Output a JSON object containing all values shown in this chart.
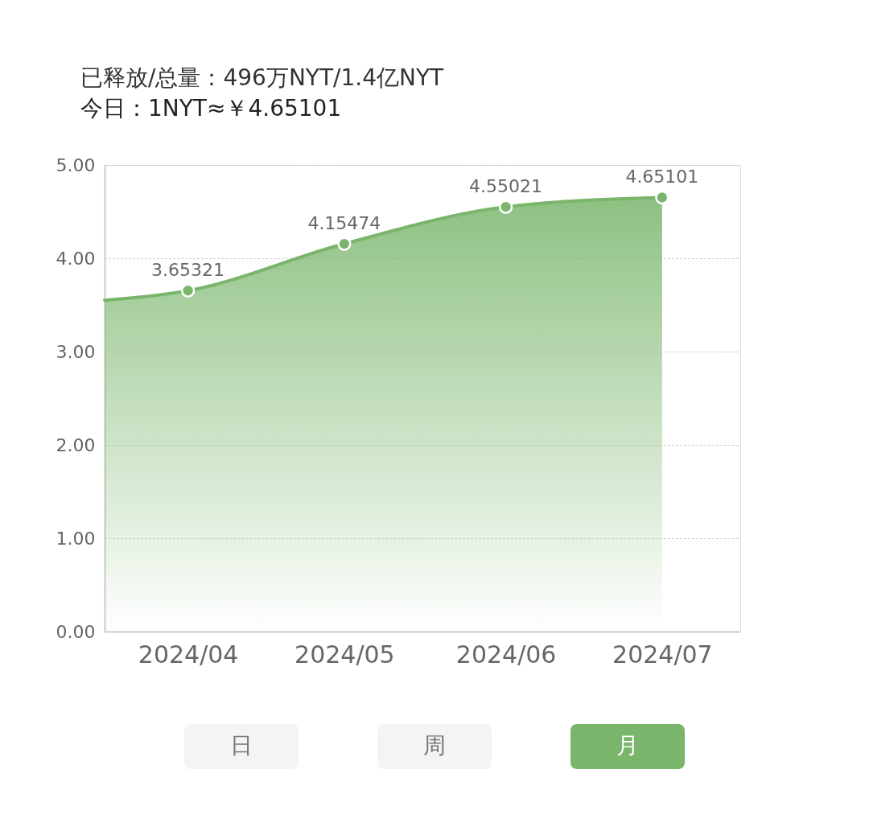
{
  "chart_data": {
    "type": "area",
    "title": "已释放/总量：496万NYT/1.4亿NYT",
    "subtitle": "今日：1NYT≈￥4.65101",
    "x": [
      "2024-03-16",
      "2024-04",
      "2024-05",
      "2024-06",
      "2024-07"
    ],
    "series": [
      {
        "color": "#7ab56c",
        "values": [
          3.55,
          3.65321,
          4.15474,
          4.55021,
          4.65101
        ],
        "value_labels": [
          null,
          "3.65321",
          "4.15474",
          "4.55021",
          "4.65101"
        ]
      }
    ],
    "xlim": [
      "2024-03-16",
      "2024-07-16"
    ],
    "xticks": [
      {
        "value": "2024-04",
        "label": "2024/04"
      },
      {
        "value": "2024-05",
        "label": "2024/05"
      },
      {
        "value": "2024-06",
        "label": "2024/06"
      },
      {
        "value": "2024-07",
        "label": "2024/07"
      }
    ],
    "ylim": [
      0,
      5
    ],
    "yticks": [
      {
        "value": 0,
        "label": "0.00"
      },
      {
        "value": 1,
        "label": "1.00"
      },
      {
        "value": 2,
        "label": "2.00"
      },
      {
        "value": 3,
        "label": "3.00"
      },
      {
        "value": 4,
        "label": "4.00"
      },
      {
        "value": 5,
        "label": "5.00"
      }
    ],
    "grid": "y",
    "marker": "circle",
    "annotations": [
      "日",
      "周",
      "月"
    ]
  }
}
